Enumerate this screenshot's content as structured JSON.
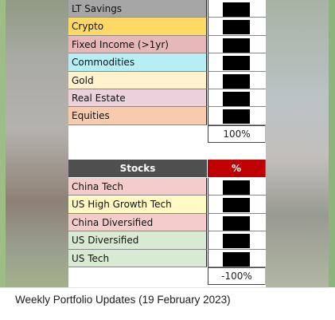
{
  "allocation": {
    "rows": [
      {
        "label": "LT Savings",
        "color": "#a6a6a6"
      },
      {
        "label": "Crypto",
        "color": "#ffd966"
      },
      {
        "label": "Fixed Income (>1yr)",
        "color": "#e6b8b7"
      },
      {
        "label": "Commodities",
        "color": "#b7eef4"
      },
      {
        "label": "Gold",
        "color": "#fff2cc"
      },
      {
        "label": "Real Estate",
        "color": "#ead1dc"
      },
      {
        "label": "Equities",
        "color": "#f8cbad"
      }
    ],
    "total": "100%"
  },
  "stocks": {
    "header_label": "Stocks",
    "header_pct": "%",
    "rows": [
      {
        "label": "China Tech",
        "color": "#f4cccc"
      },
      {
        "label": "US High Growth Tech",
        "color": "#fff9c4"
      },
      {
        "label": "China Diversified",
        "color": "#f4cccc"
      },
      {
        "label": "US Diversified",
        "color": "#d9ead3"
      },
      {
        "label": "US Tech",
        "color": "#d9ead3"
      }
    ],
    "total": "-100%"
  },
  "caption": {
    "text": "Weekly Portfolio Updates (19 February 2023)"
  }
}
